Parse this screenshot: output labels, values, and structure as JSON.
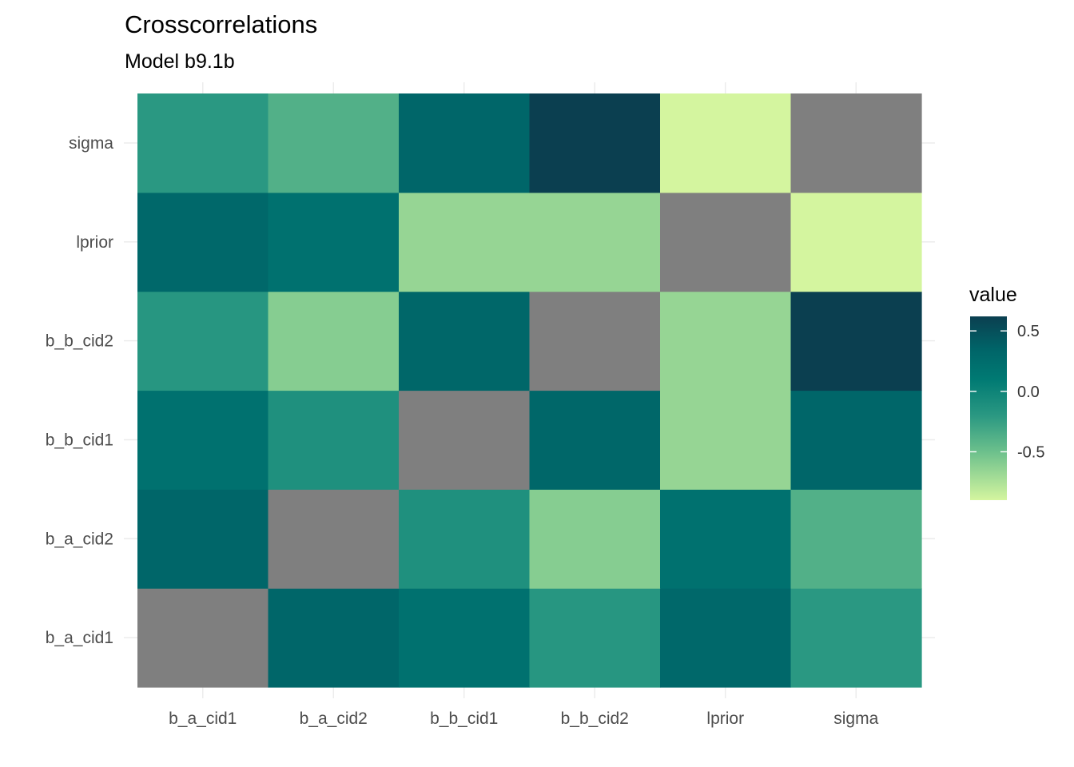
{
  "chart_data": {
    "type": "heatmap",
    "title": "Crosscorrelations",
    "subtitle": "Model b9.1b",
    "xlabel": "",
    "ylabel": "",
    "x_categories": [
      "b_a_cid1",
      "b_a_cid2",
      "b_b_cid1",
      "b_b_cid2",
      "lprior",
      "sigma"
    ],
    "y_categories": [
      "b_a_cid1",
      "b_a_cid2",
      "b_b_cid1",
      "b_b_cid2",
      "lprior",
      "sigma"
    ],
    "values": [
      [
        null,
        0.33,
        0.2,
        -0.18,
        0.3,
        -0.2
      ],
      [
        0.33,
        null,
        -0.12,
        -0.6,
        0.2,
        -0.38
      ],
      [
        0.2,
        -0.12,
        null,
        0.32,
        -0.66,
        0.33
      ],
      [
        -0.18,
        -0.6,
        0.32,
        null,
        -0.66,
        0.62
      ],
      [
        0.3,
        0.2,
        -0.66,
        -0.66,
        null,
        -0.9
      ],
      [
        -0.2,
        -0.38,
        0.33,
        0.62,
        -0.9,
        null
      ]
    ],
    "na_color": "#7f7f7f",
    "color_scale": {
      "min": -0.9,
      "max": 0.62,
      "stops": [
        {
          "value": -0.9,
          "color": "#d4f59f"
        },
        {
          "value": -0.5,
          "color": "#6cc08c"
        },
        {
          "value": -0.2,
          "color": "#2a9882"
        },
        {
          "value": 0.1,
          "color": "#007a73"
        },
        {
          "value": 0.35,
          "color": "#006468"
        },
        {
          "value": 0.62,
          "color": "#0b3f50"
        }
      ]
    },
    "legend": {
      "title": "value",
      "position": "right",
      "ticks": [
        {
          "value": 0.5,
          "label": "0.5"
        },
        {
          "value": 0.0,
          "label": "0.0"
        },
        {
          "value": -0.5,
          "label": "-0.5"
        }
      ]
    },
    "grid": true
  }
}
